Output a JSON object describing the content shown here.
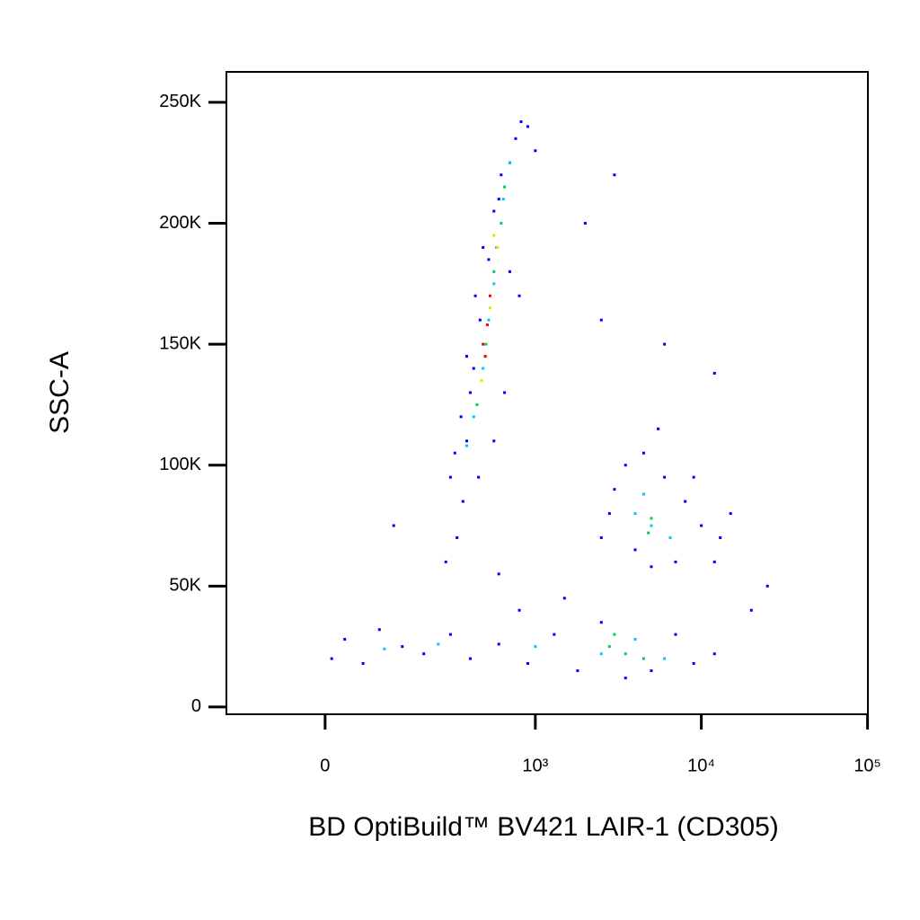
{
  "chart_data": {
    "type": "scatter",
    "x_label": "BD OptiBuild™ BV421 LAIR-1 (CD305)",
    "y_label": "SSC-A",
    "xscale": "biexponential",
    "xlim": [
      -200,
      100500
    ],
    "ylim": [
      -3000,
      262600
    ],
    "xticks": [
      0,
      {
        "value": 1000,
        "label": "10³"
      },
      {
        "value": 10000,
        "label": "10⁴"
      },
      {
        "value": 100000,
        "label": "10⁵"
      }
    ],
    "yticks": [
      0,
      {
        "value": 50000,
        "label": "50K"
      },
      {
        "value": 100000,
        "label": "100K"
      },
      {
        "value": 150000,
        "label": "150K"
      },
      {
        "value": 200000,
        "label": "200K"
      },
      {
        "value": 250000,
        "label": "250K"
      }
    ],
    "series": [
      {
        "color": "#0000ff",
        "x": [
          300,
          320,
          380,
          350,
          400,
          420,
          380,
          460,
          430,
          520,
          480,
          560,
          600,
          620,
          700,
          760,
          820,
          900,
          1000,
          700,
          800,
          650,
          560,
          450,
          360,
          330,
          280,
          2500,
          3000,
          3500,
          4500,
          6000,
          8000,
          10000,
          13000,
          15000,
          12000,
          7000,
          5000,
          4000,
          2800,
          9000,
          5500,
          10,
          30,
          60,
          90,
          140,
          200,
          300,
          400,
          600,
          900,
          1300,
          1800,
          2500,
          3500,
          5000,
          7000,
          9000,
          12000,
          20000,
          25000,
          1500,
          800,
          600,
          120,
          2000,
          3000,
          6000,
          12000,
          2500
        ],
        "values": [
          95000,
          105000,
          110000,
          120000,
          130000,
          140000,
          145000,
          160000,
          170000,
          185000,
          190000,
          205000,
          210000,
          220000,
          225000,
          235000,
          242000,
          240000,
          230000,
          180000,
          170000,
          130000,
          110000,
          95000,
          85000,
          70000,
          60000,
          70000,
          90000,
          100000,
          105000,
          95000,
          85000,
          75000,
          70000,
          80000,
          60000,
          60000,
          58000,
          65000,
          80000,
          95000,
          115000,
          20000,
          28000,
          18000,
          32000,
          25000,
          22000,
          30000,
          20000,
          26000,
          18000,
          30000,
          15000,
          35000,
          12000,
          15000,
          30000,
          18000,
          22000,
          40000,
          50000,
          45000,
          40000,
          55000,
          75000,
          200000,
          220000,
          150000,
          138000,
          160000
        ]
      },
      {
        "color": "#00c8ff",
        "x": [
          420,
          480,
          520,
          580,
          640,
          700,
          380,
          560,
          4000,
          5000,
          6500,
          4500,
          100,
          250,
          1000,
          2500,
          4000,
          6000
        ],
        "values": [
          120000,
          140000,
          160000,
          190000,
          210000,
          225000,
          108000,
          175000,
          80000,
          75000,
          70000,
          88000,
          24000,
          26000,
          25000,
          22000,
          28000,
          20000
        ]
      },
      {
        "color": "#00d050",
        "x": [
          440,
          500,
          560,
          620,
          650,
          5000,
          4800,
          2800,
          3500,
          4500,
          3000
        ],
        "values": [
          125000,
          150000,
          180000,
          200000,
          215000,
          78000,
          72000,
          25000,
          22000,
          20000,
          30000
        ]
      },
      {
        "color": "#f0e000",
        "x": [
          470,
          530,
          590,
          500,
          560
        ],
        "values": [
          135000,
          165000,
          190000,
          145000,
          195000
        ]
      },
      {
        "color": "#ff0000",
        "x": [
          480,
          510,
          530,
          495
        ],
        "values": [
          150000,
          158000,
          170000,
          145000
        ]
      }
    ]
  }
}
